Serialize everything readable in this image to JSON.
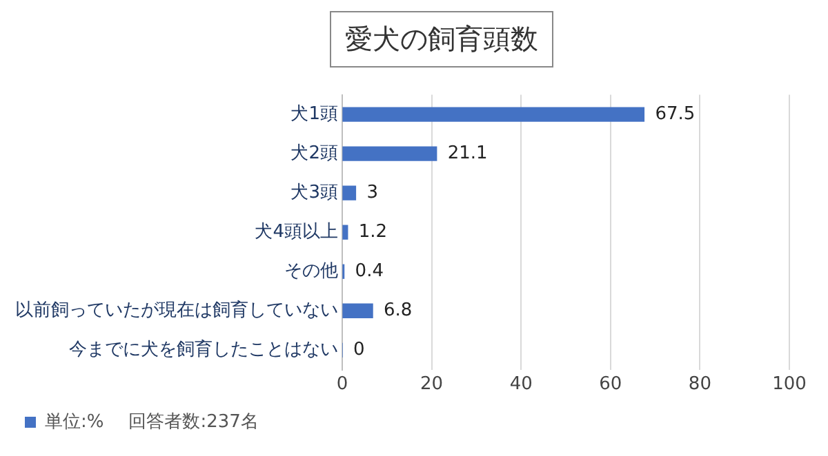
{
  "chart_data": {
    "type": "bar",
    "orientation": "horizontal",
    "title": "愛犬の飼育頭数",
    "categories": [
      "犬1頭",
      "犬2頭",
      "犬3頭",
      "犬4頭以上",
      "その他",
      "以前飼っていたが現在は飼育していない",
      "今までに犬を飼育したことはない"
    ],
    "series": [
      {
        "name": "単位:%",
        "color": "#4472c4",
        "values": [
          67.5,
          21.1,
          3,
          1.2,
          0.4,
          6.8,
          0
        ]
      }
    ],
    "xlim": [
      0,
      100
    ],
    "xticks": [
      0,
      20,
      40,
      60,
      80,
      100
    ],
    "grid": "x",
    "legend": "bottom",
    "data_labels": true,
    "annotations": [
      "回答者数:237名"
    ]
  }
}
